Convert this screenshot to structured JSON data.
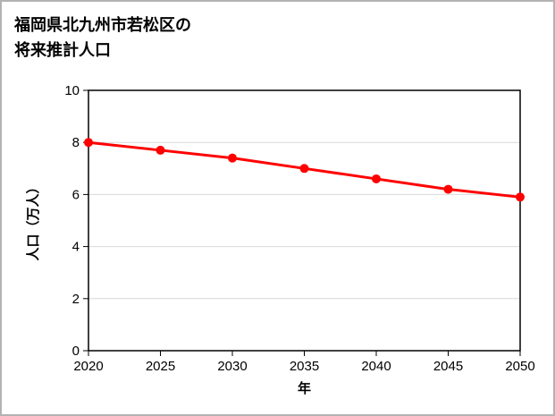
{
  "title": {
    "line1": "福岡県北九州市若松区の",
    "line2": "将来推計人口"
  },
  "chart_data": {
    "type": "line",
    "title": "福岡県北九州市若松区の将来推計人口",
    "x": [
      2020,
      2025,
      2030,
      2035,
      2040,
      2045,
      2050
    ],
    "series": [
      {
        "name": "将来推計人口",
        "values": [
          8.0,
          7.7,
          7.4,
          7.0,
          6.6,
          6.2,
          5.9
        ],
        "color": "#ff0000"
      }
    ],
    "xlabel": "年",
    "ylabel": "人口（万人）",
    "xlim": [
      2020,
      2050
    ],
    "ylim": [
      0,
      10
    ],
    "xticks": [
      2020,
      2025,
      2030,
      2035,
      2040,
      2045,
      2050
    ],
    "yticks": [
      0,
      2,
      4,
      6,
      8,
      10
    ],
    "grid": true,
    "legend": "none",
    "marker": "circle",
    "colors": {
      "grid": "#d9d9d9",
      "axis": "#000000",
      "text": "#000000",
      "background": "#ffffff"
    }
  }
}
